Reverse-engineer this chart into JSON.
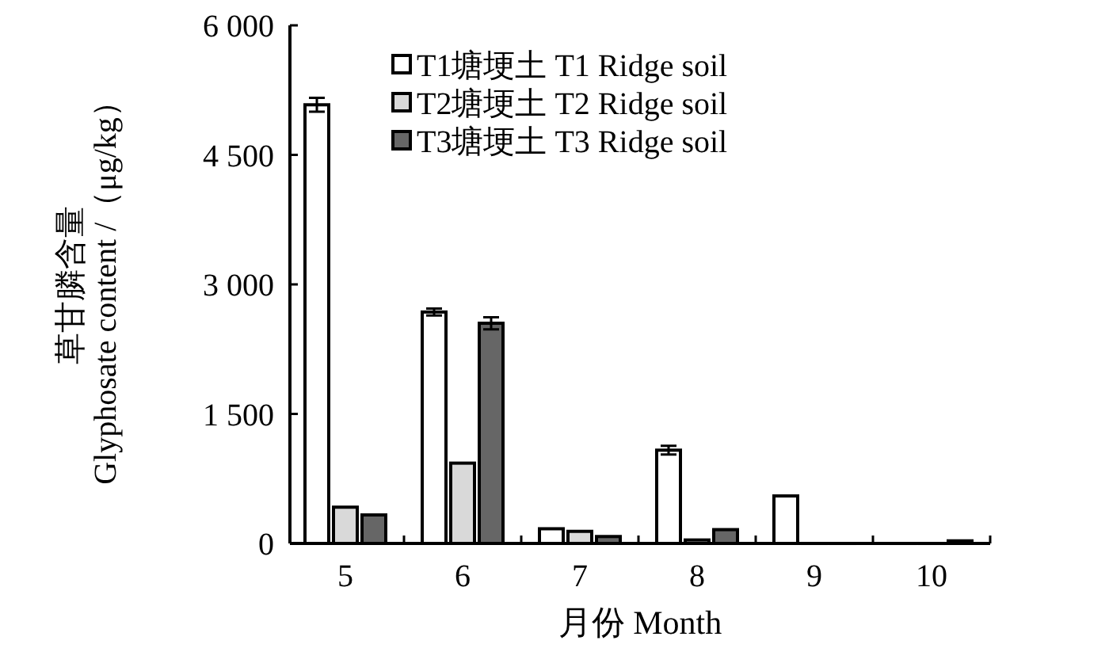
{
  "chart_data": {
    "type": "bar",
    "xlabel": "月份 Month",
    "ylabel": "草甘膦含量\nGlyphosate content /（μg/kg）",
    "categories": [
      "5",
      "6",
      "7",
      "8",
      "9",
      "10"
    ],
    "series": [
      {
        "name": "T1塘埂土 T1 Ridge soil",
        "color": "#ffffff",
        "values": [
          5080,
          2680,
          170,
          1080,
          550,
          0
        ],
        "errors": [
          80,
          40,
          null,
          50,
          null,
          null
        ]
      },
      {
        "name": "T2塘埂土 T2 Ridge soil",
        "color": "#d9d9d9",
        "values": [
          420,
          930,
          140,
          40,
          0,
          0
        ],
        "errors": [
          null,
          null,
          null,
          null,
          null,
          null
        ]
      },
      {
        "name": "T3塘埂土 T3 Ridge soil",
        "color": "#666666",
        "values": [
          330,
          2550,
          80,
          160,
          0,
          30
        ],
        "errors": [
          null,
          70,
          null,
          null,
          null,
          null
        ]
      }
    ],
    "ylim": [
      0,
      6000
    ],
    "yticks": [
      0,
      {
        "value": 1500,
        "label": "1 500"
      },
      {
        "value": 3000,
        "label": "3 000"
      },
      {
        "value": 4500,
        "label": "4 500"
      },
      {
        "value": 6000,
        "label": "6 000"
      }
    ],
    "grid": false,
    "legend": "top"
  }
}
